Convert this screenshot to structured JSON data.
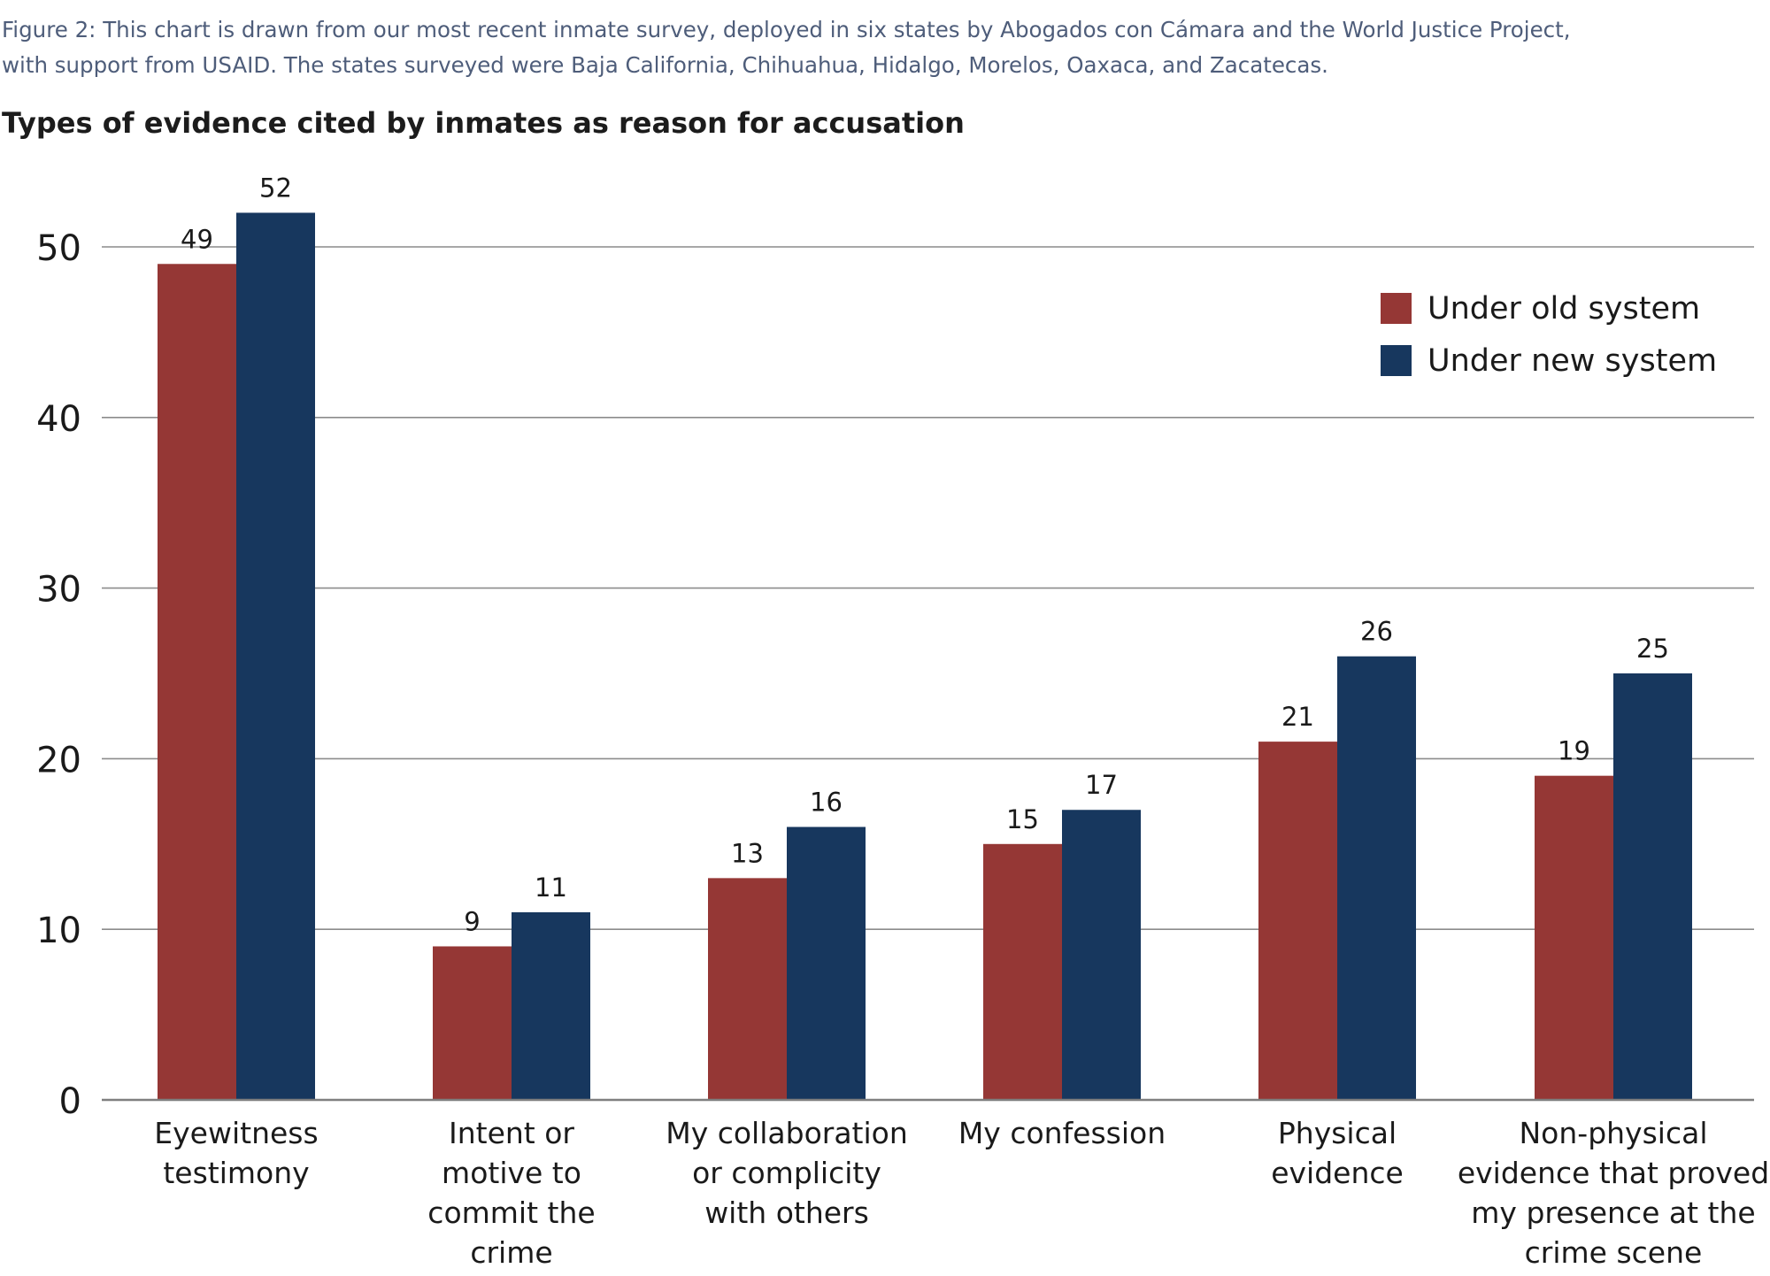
{
  "figure_caption": {
    "line1": "Figure 2: This chart is drawn from our most recent inmate survey, deployed in six states by Abogados con Cámara and the World Justice Project,",
    "line2": "with support from USAID. The states surveyed were Baja California, Chihuahua, Hidalgo, Morelos, Oaxaca, and Zacatecas."
  },
  "chart_data": {
    "type": "bar",
    "title": "Types of evidence cited by inmates as reason for accusation",
    "xlabel": "",
    "ylabel": "",
    "ylim": [
      0,
      50
    ],
    "yticks": [
      0,
      10,
      20,
      30,
      40,
      50
    ],
    "grid": true,
    "legend_position": "top-right",
    "categories": [
      [
        "Eyewitness",
        "testimony"
      ],
      [
        "Intent or",
        "motive to",
        "commit the",
        "crime"
      ],
      [
        "My collaboration",
        "or complicity",
        "with others"
      ],
      [
        "My confession"
      ],
      [
        "Physical",
        "evidence"
      ],
      [
        "Non-physical",
        "evidence that proved",
        "my presence at the",
        "crime scene"
      ]
    ],
    "series": [
      {
        "name": "Under old system",
        "color": "#953735",
        "values": [
          49,
          9,
          13,
          15,
          21,
          19
        ]
      },
      {
        "name": "Under new system",
        "color": "#17375e",
        "values": [
          52,
          11,
          16,
          17,
          26,
          25
        ]
      }
    ],
    "gridline_color": "#8c8c8c",
    "axis_color": "#7f7f7f"
  }
}
